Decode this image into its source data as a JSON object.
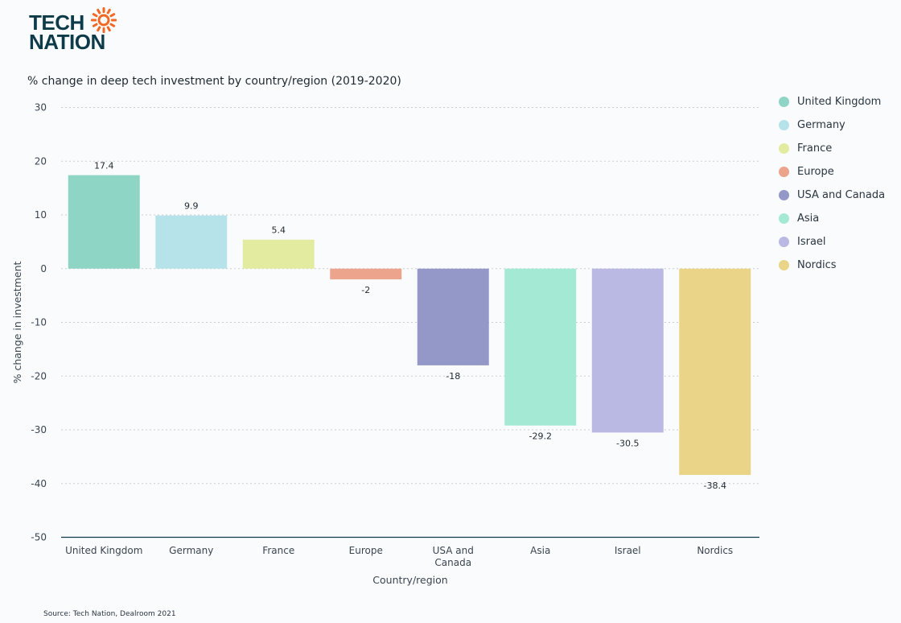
{
  "logo": {
    "line1": "TECH",
    "line2": "NATION",
    "accent": "#f26722"
  },
  "source": "Source: Tech Nation, Dealroom 2021",
  "chart_data": {
    "type": "bar",
    "title": "% change in deep tech investment by country/region (2019-2020)",
    "xlabel": "Country/region",
    "ylabel": "% change in investment",
    "ylim": [
      -50,
      30
    ],
    "yticks": [
      30,
      20,
      10,
      0,
      -10,
      -20,
      -30,
      -40,
      -50
    ],
    "categories": [
      "United Kingdom",
      "Germany",
      "France",
      "Europe",
      "USA and Canada",
      "Asia",
      "Israel",
      "Nordics"
    ],
    "category_labels": [
      [
        "United Kingdom"
      ],
      [
        "Germany"
      ],
      [
        "France"
      ],
      [
        "Europe"
      ],
      [
        "USA and",
        "Canada"
      ],
      [
        "Asia"
      ],
      [
        "Israel"
      ],
      [
        "Nordics"
      ]
    ],
    "values": [
      17.4,
      9.9,
      5.4,
      -2,
      -18,
      -29.2,
      -30.5,
      -38.4
    ],
    "colors": [
      "#8fd5c5",
      "#b6e3ea",
      "#e3eba1",
      "#eda48d",
      "#9398c8",
      "#a3e9d4",
      "#b9b9e4",
      "#e9d488"
    ],
    "legend": [
      "United Kingdom",
      "Germany",
      "France",
      "Europe",
      "USA and Canada",
      "Asia",
      "Israel",
      "Nordics"
    ],
    "legend_position": "right",
    "grid": true
  }
}
